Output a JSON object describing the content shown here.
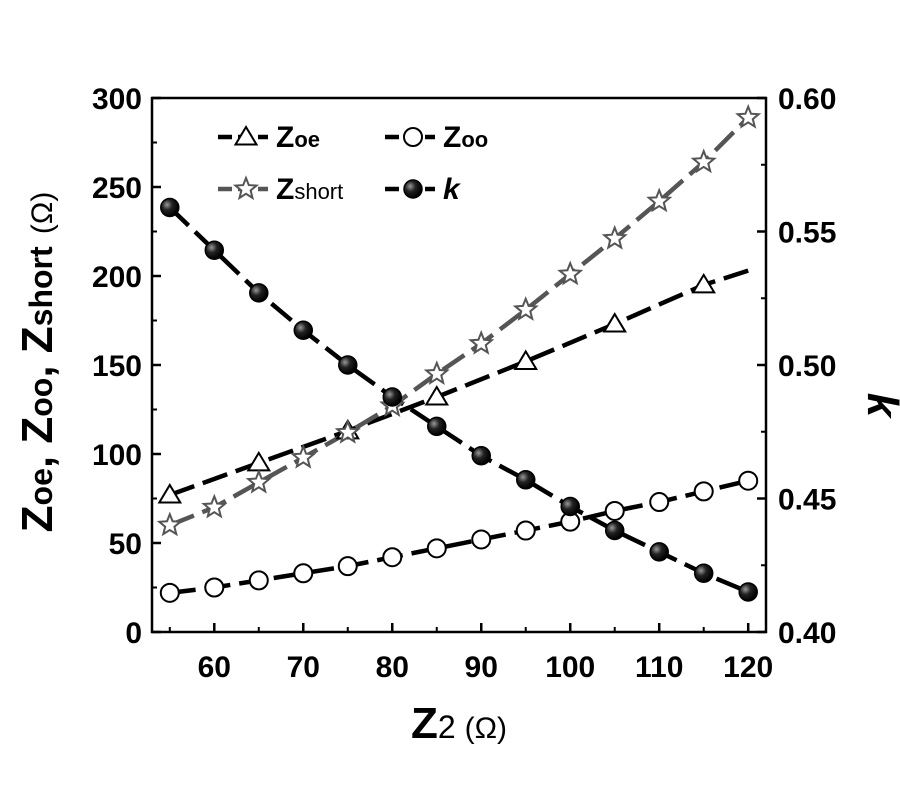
{
  "chart_data": {
    "type": "line",
    "xlabel": {
      "main": "Z",
      "sub": "2",
      "unit": "(Ω)"
    },
    "ylabel_left": {
      "parts": [
        {
          "main": "Z",
          "sub": "oe",
          "sep": ", "
        },
        {
          "main": "Z",
          "sub": "oo",
          "sep": ", "
        },
        {
          "main": "Z",
          "sub": "short",
          "sep": " "
        }
      ],
      "unit": "(Ω)"
    },
    "ylabel_right": "k",
    "xlim": [
      53,
      122
    ],
    "ylim_left": [
      0,
      300
    ],
    "ylim_right": [
      0.4,
      0.6
    ],
    "x_ticks": [
      "60",
      "70",
      "80",
      "90",
      "100",
      "110",
      "120"
    ],
    "y_left_ticks": [
      "0",
      "50",
      "100",
      "150",
      "200",
      "250",
      "300"
    ],
    "y_right_ticks": [
      "0.40",
      "0.45",
      "0.50",
      "0.55",
      "0.60"
    ],
    "legend_position": "top-left",
    "series": [
      {
        "name": "Zoe",
        "legend_main": "Z",
        "legend_sub": "oe",
        "axis": "left",
        "marker": "triangle-open",
        "line_color": "#000000",
        "x": [
          55,
          65,
          75,
          85,
          95,
          105,
          115
        ],
        "y": [
          77,
          95,
          113,
          132,
          152,
          173,
          195
        ],
        "line_end": [
          120,
          203
        ]
      },
      {
        "name": "Zoo",
        "legend_main": "Z",
        "legend_sub": "oo",
        "axis": "left",
        "marker": "circle-open",
        "line_color": "#000000",
        "x": [
          55,
          60,
          65,
          70,
          75,
          80,
          85,
          90,
          95,
          100,
          105,
          110,
          115,
          120
        ],
        "y": [
          22,
          25,
          29,
          33,
          37,
          42,
          47,
          52,
          57,
          62,
          68,
          73,
          79,
          85
        ]
      },
      {
        "name": "Zshort",
        "legend_main": "Z",
        "legend_sub": "short",
        "axis": "left",
        "marker": "star-open",
        "line_color": "#555555",
        "x": [
          55,
          60,
          65,
          70,
          75,
          80,
          85,
          90,
          95,
          100,
          105,
          110,
          115,
          120
        ],
        "y": [
          60,
          70,
          84,
          98,
          112,
          127,
          145,
          162,
          181,
          201,
          221,
          242,
          264,
          289
        ]
      },
      {
        "name": "k",
        "legend_main": "k",
        "legend_sub": "",
        "axis": "right",
        "marker": "circle-filled",
        "line_color": "#000000",
        "x": [
          55,
          60,
          65,
          70,
          75,
          80,
          85,
          90,
          95,
          100,
          105,
          110,
          115,
          120
        ],
        "y": [
          0.559,
          0.543,
          0.527,
          0.513,
          0.5,
          0.488,
          0.477,
          0.466,
          0.457,
          0.447,
          0.438,
          0.43,
          0.422,
          0.415
        ]
      }
    ]
  }
}
